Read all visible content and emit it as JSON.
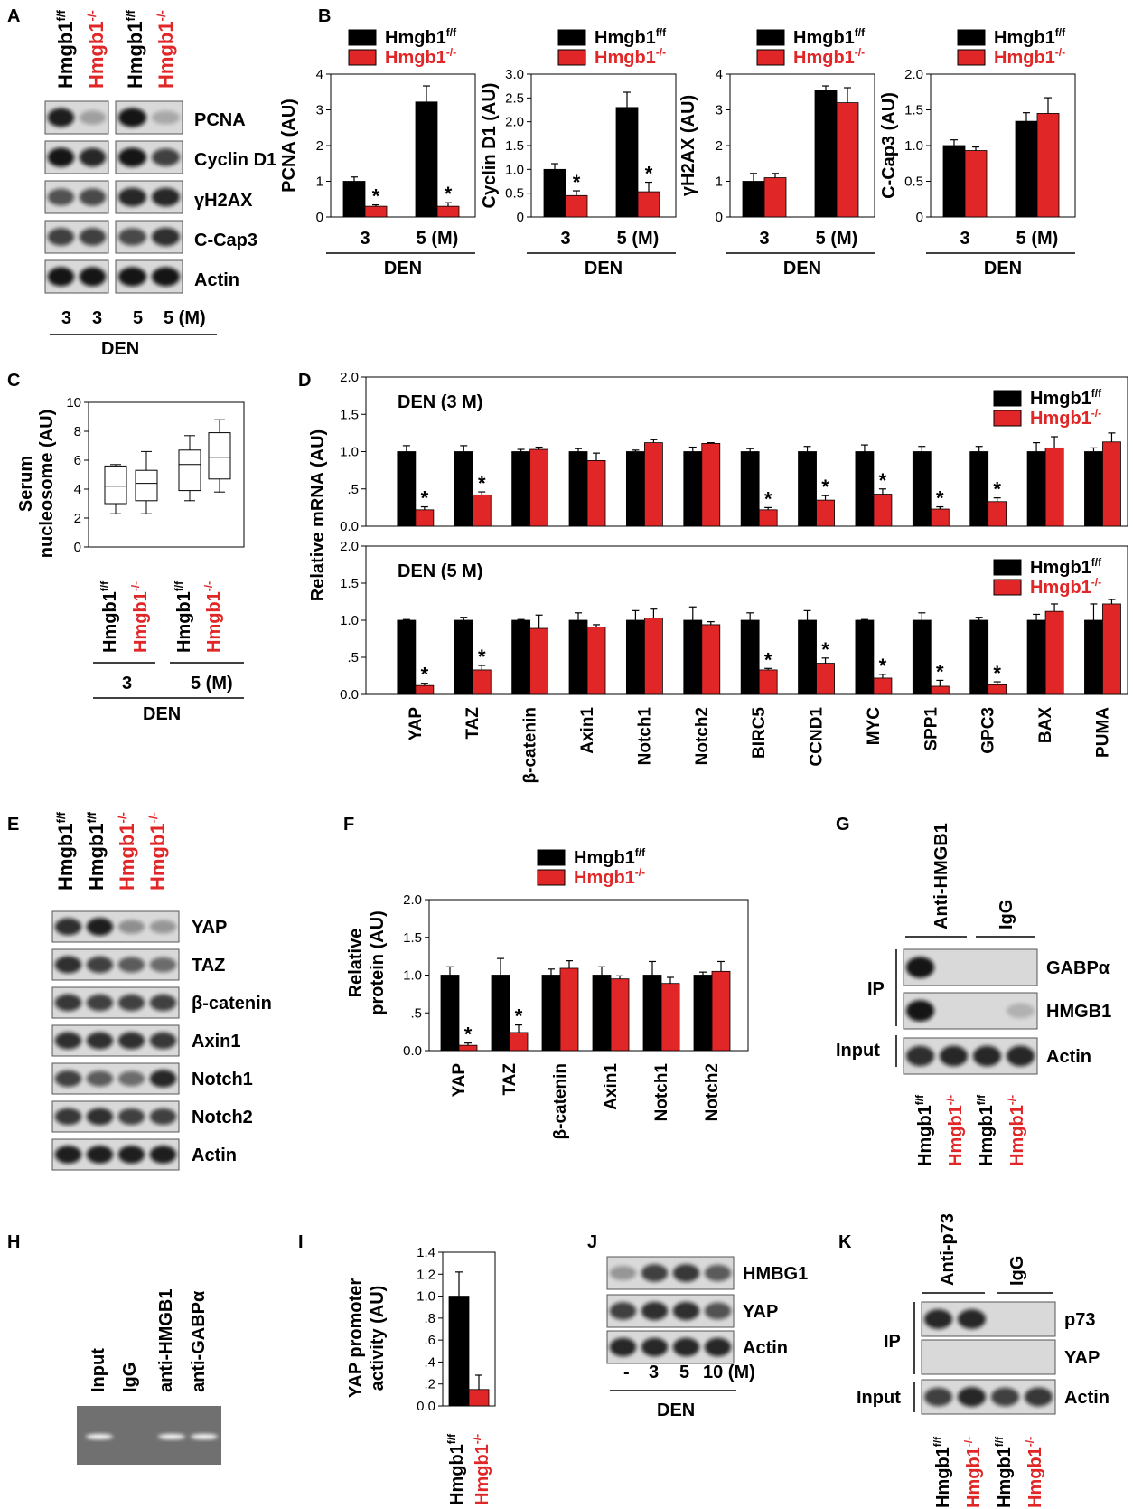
{
  "colors": {
    "wt": "#000000",
    "ko": "#e02626",
    "blot_bg": "#d9d9d9",
    "gel_bg": "#6b6b6b"
  },
  "genotype": {
    "wt": "Hmgb1",
    "wt_sup": "f/f",
    "ko": "Hmgb1",
    "ko_sup": "-/-"
  },
  "panel_labels": [
    "A",
    "B",
    "C",
    "D",
    "E",
    "F",
    "G",
    "H",
    "I",
    "J",
    "K"
  ],
  "A": {
    "bands": [
      "PCNA",
      "Cyclin D1",
      "γH2AX",
      "C-Cap3",
      "Actin"
    ],
    "lanes": [
      "3",
      "3",
      "5",
      "5 (M)"
    ],
    "treatment": "DEN"
  },
  "B": {
    "treatment": "DEN",
    "categories": [
      "3",
      "5 (M)"
    ],
    "chart_data": [
      {
        "type": "bar",
        "ylabel": "PCNA (AU)",
        "ylim": [
          0,
          4
        ],
        "yticks": [
          "0",
          "1",
          "2",
          "3",
          "4"
        ],
        "categories": [
          "3",
          "5 (M)"
        ],
        "series": [
          {
            "name": "Hmgb1f/f",
            "values": [
              1.0,
              3.22
            ],
            "err": [
              0.12,
              0.45
            ]
          },
          {
            "name": "Hmgb1-/-",
            "values": [
              0.3,
              0.3
            ],
            "err": [
              0.04,
              0.1
            ]
          }
        ],
        "significant": [
          true,
          true
        ]
      },
      {
        "type": "bar",
        "ylabel": "Cyclin D1 (AU)",
        "ylim": [
          0,
          3
        ],
        "yticks": [
          "0",
          "0.5",
          "1.0",
          "1.5",
          "2.0",
          "2.5",
          "3.0"
        ],
        "categories": [
          "3",
          "5 (M)"
        ],
        "series": [
          {
            "name": "Hmgb1f/f",
            "values": [
              1.0,
              2.3
            ],
            "err": [
              0.12,
              0.32
            ]
          },
          {
            "name": "Hmgb1-/-",
            "values": [
              0.45,
              0.53
            ],
            "err": [
              0.1,
              0.2
            ]
          }
        ],
        "significant": [
          true,
          true
        ]
      },
      {
        "type": "bar",
        "ylabel": "γH2AX (AU)",
        "ylim": [
          0,
          4
        ],
        "yticks": [
          "0",
          "1",
          "2",
          "3",
          "4"
        ],
        "categories": [
          "3",
          "5 (M)"
        ],
        "series": [
          {
            "name": "Hmgb1f/f",
            "values": [
              1.0,
              3.55
            ],
            "err": [
              0.22,
              0.12
            ]
          },
          {
            "name": "Hmgb1-/-",
            "values": [
              1.1,
              3.2
            ],
            "err": [
              0.12,
              0.42
            ]
          }
        ],
        "significant": [
          false,
          false
        ]
      },
      {
        "type": "bar",
        "ylabel": "C-Cap3 (AU)",
        "ylim": [
          0,
          2
        ],
        "yticks": [
          "0",
          "0.5",
          "1.0",
          "1.5",
          "2.0"
        ],
        "categories": [
          "3",
          "5 (M)"
        ],
        "series": [
          {
            "name": "Hmgb1f/f",
            "values": [
              1.0,
              1.34
            ],
            "err": [
              0.08,
              0.12
            ]
          },
          {
            "name": "Hmgb1-/-",
            "values": [
              0.93,
              1.45
            ],
            "err": [
              0.05,
              0.22
            ]
          }
        ],
        "significant": [
          false,
          false
        ]
      }
    ]
  },
  "C": {
    "ylabel1": "Serum",
    "ylabel2": "nucleosome (AU)",
    "treatment": "DEN",
    "groups": [
      "3",
      "5 (M)"
    ],
    "chart_data": {
      "type": "box",
      "ylim": [
        0,
        10
      ],
      "yticks": [
        "0",
        "2",
        "4",
        "6",
        "8",
        "10"
      ],
      "boxes": [
        {
          "min": 2.3,
          "q1": 3.0,
          "median": 4.2,
          "q3": 5.6,
          "max": 5.7
        },
        {
          "min": 2.3,
          "q1": 3.2,
          "median": 4.4,
          "q3": 5.3,
          "max": 6.6
        },
        {
          "min": 3.2,
          "q1": 3.9,
          "median": 5.7,
          "q3": 6.7,
          "max": 7.7
        },
        {
          "min": 3.8,
          "q1": 4.7,
          "median": 6.2,
          "q3": 7.9,
          "max": 8.8
        }
      ]
    }
  },
  "D": {
    "ylabel": "Relative mRNA (AU)",
    "yticks": [
      "0.0",
      ".5",
      "1.0",
      "1.5",
      "2.0"
    ],
    "genes": [
      "YAP",
      "TAZ",
      "β-catenin",
      "Axin1",
      "Notch1",
      "Notch2",
      "BIRC5",
      "CCND1",
      "MYC",
      "SPP1",
      "GPC3",
      "BAX",
      "PUMA"
    ],
    "chart_data": [
      {
        "type": "bar",
        "title": "DEN (3 M)",
        "ylim": [
          0,
          2
        ],
        "series": [
          {
            "name": "Hmgb1f/f",
            "values": [
              1,
              1,
              1,
              1,
              1,
              1,
              1,
              1,
              1,
              1,
              1,
              1,
              1
            ],
            "err": [
              0.08,
              0.08,
              0.03,
              0.04,
              0.02,
              0.06,
              0.04,
              0.07,
              0.09,
              0.07,
              0.07,
              0.12,
              0.05
            ]
          },
          {
            "name": "Hmgb1-/-",
            "values": [
              0.22,
              0.42,
              1.03,
              0.88,
              1.12,
              1.11,
              0.22,
              0.35,
              0.43,
              0.23,
              0.33,
              1.05,
              1.13
            ]
          }
        ],
        "ko_err": [
          0.04,
          0.04,
          0.03,
          0.1,
          0.04,
          0.01,
          0.03,
          0.06,
          0.07,
          0.03,
          0.05,
          0.15,
          0.12
        ],
        "significant": [
          true,
          true,
          false,
          false,
          false,
          false,
          true,
          true,
          true,
          true,
          true,
          false,
          false
        ]
      },
      {
        "type": "bar",
        "title": "DEN (5 M)",
        "ylim": [
          0,
          2
        ],
        "series": [
          {
            "name": "Hmgb1f/f",
            "values": [
              1,
              1,
              1,
              1,
              1,
              1,
              1,
              1,
              1,
              1,
              1,
              1,
              1
            ],
            "err": [
              0.01,
              0.04,
              0.01,
              0.1,
              0.13,
              0.18,
              0.1,
              0.13,
              0.01,
              0.1,
              0.04,
              0.08,
              0.22
            ]
          },
          {
            "name": "Hmgb1-/-",
            "values": [
              0.12,
              0.33,
              0.89,
              0.91,
              1.03,
              0.94,
              0.33,
              0.42,
              0.22,
              0.11,
              0.13,
              1.12,
              1.22
            ]
          }
        ],
        "ko_err": [
          0.03,
          0.06,
          0.18,
          0.03,
          0.12,
          0.04,
          0.02,
          0.07,
          0.05,
          0.08,
          0.04,
          0.1,
          0.06
        ],
        "significant": [
          true,
          true,
          false,
          false,
          false,
          false,
          true,
          true,
          true,
          true,
          true,
          false,
          false
        ]
      }
    ]
  },
  "E": {
    "bands": [
      "YAP",
      "TAZ",
      "β-catenin",
      "Axin1",
      "Notch1",
      "Notch2",
      "Actin"
    ]
  },
  "F": {
    "ylabel1": "Relative",
    "ylabel2": "protein (AU)",
    "yticks": [
      "0.0",
      ".5",
      "1.0",
      "1.5",
      "2.0"
    ],
    "chart_data": {
      "type": "bar",
      "ylim": [
        0,
        2
      ],
      "categories": [
        "YAP",
        "TAZ",
        "β-catenin",
        "Axin1",
        "Notch1",
        "Notch2"
      ],
      "series": [
        {
          "name": "Hmgb1f/f",
          "values": [
            1,
            1,
            1,
            1,
            1,
            1
          ],
          "err": [
            0.11,
            0.22,
            0.08,
            0.11,
            0.18,
            0.04
          ]
        },
        {
          "name": "Hmgb1-/-",
          "values": [
            0.07,
            0.24,
            1.09,
            0.95,
            0.89,
            1.05
          ]
        }
      ],
      "ko_err": [
        0.03,
        0.1,
        0.1,
        0.04,
        0.08,
        0.13
      ],
      "significant": [
        true,
        true,
        false,
        false,
        false,
        false
      ]
    }
  },
  "G": {
    "antibody": "Anti-HMGB1",
    "igg": "IgG",
    "ip_label": "IP",
    "input_label": "Input",
    "bands": [
      "GABPα",
      "HMGB1",
      "Actin"
    ]
  },
  "H": {
    "lanes": [
      "Input",
      "IgG",
      "anti-HMGB1",
      "anti-GABPα"
    ]
  },
  "I": {
    "ylabel1": "YAP promoter",
    "ylabel2": "activity (AU)",
    "yticks": [
      "0.0",
      ".2",
      ".4",
      ".6",
      ".8",
      "1.0",
      "1.2",
      "1.4"
    ],
    "chart_data": {
      "type": "bar",
      "ylim": [
        0,
        1.4
      ],
      "categories": [
        "Hmgb1f/f",
        "Hmgb1-/-"
      ],
      "values": [
        1.0,
        0.15
      ],
      "err": [
        0.22,
        0.13
      ]
    }
  },
  "J": {
    "bands": [
      "HMBG1",
      "YAP",
      "Actin"
    ],
    "lanes": [
      "-",
      "3",
      "5",
      "10 (M)"
    ],
    "treatment": "DEN"
  },
  "K": {
    "antibody": "Anti-p73",
    "igg": "IgG",
    "ip_label": "IP",
    "input_label": "Input",
    "bands": [
      "p73",
      "YAP",
      "Actin"
    ]
  }
}
